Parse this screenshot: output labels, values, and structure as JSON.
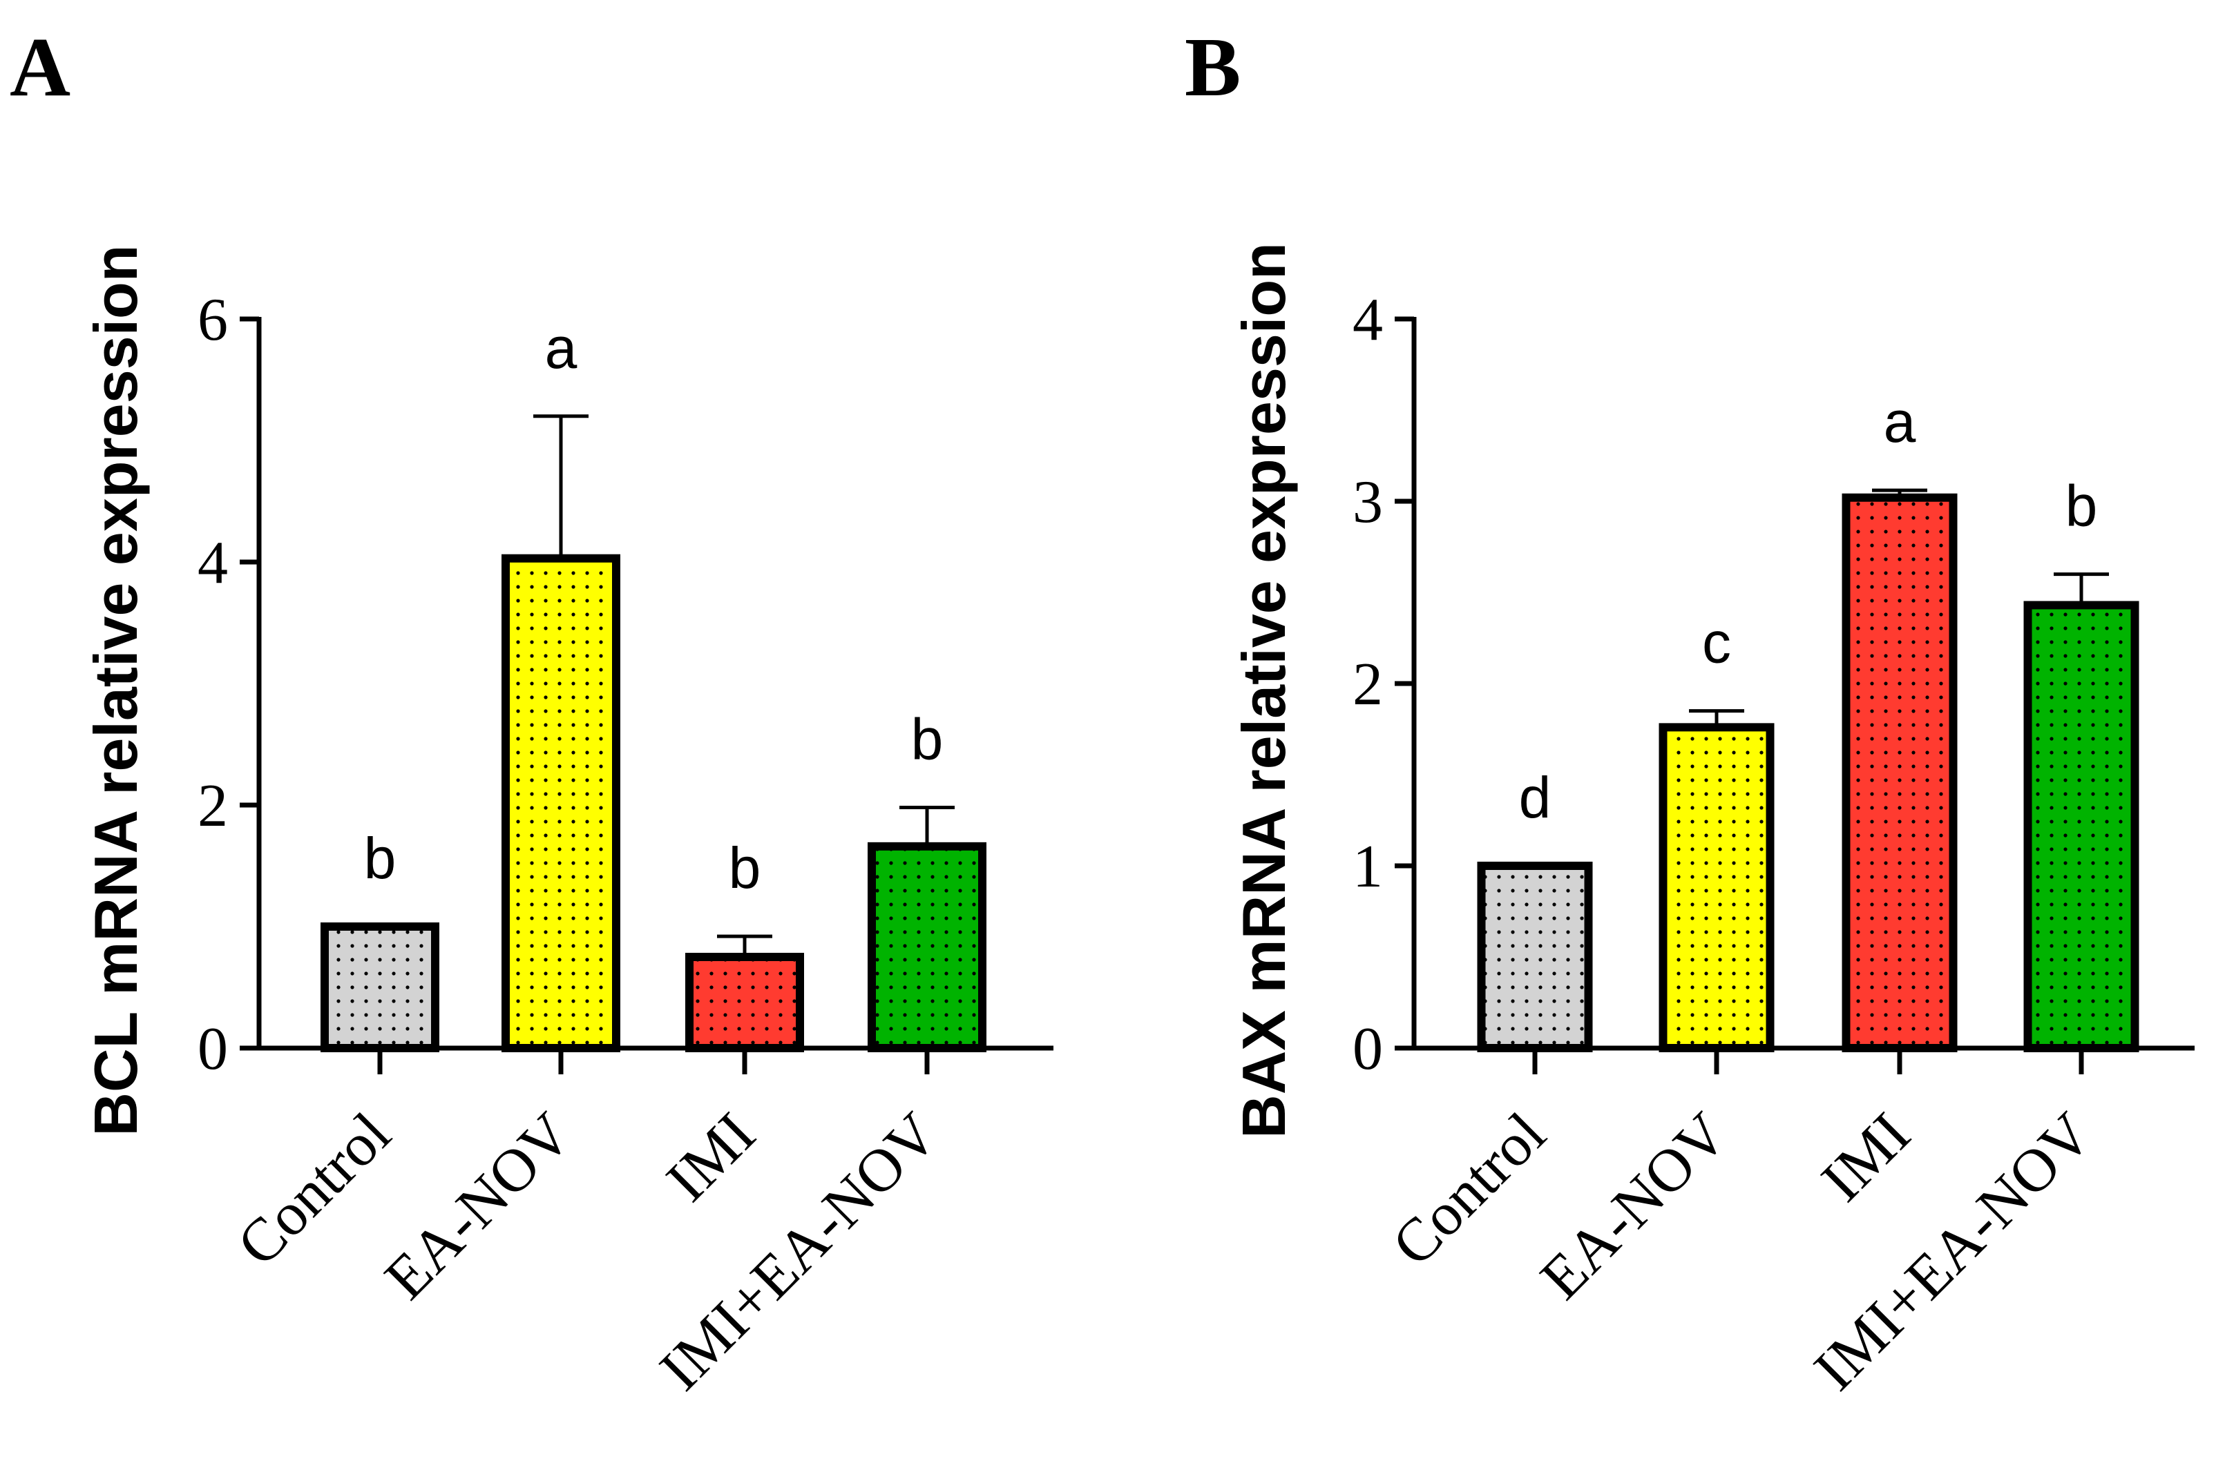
{
  "chart_data": [
    {
      "type": "bar",
      "panel": "A",
      "ylabel": "BCL mRNA relative expression",
      "categories": [
        "Control",
        "EA-NOV",
        "IMI",
        "IMI+EA-NOV"
      ],
      "values": [
        1.0,
        4.03,
        0.75,
        1.66
      ],
      "errors": [
        0.0,
        1.17,
        0.17,
        0.32
      ],
      "significance": [
        "b",
        "a",
        "b",
        "b"
      ],
      "colors": [
        "#d3d3d3",
        "#ffff00",
        "#ff3b30",
        "#00b300"
      ],
      "ylim": [
        0,
        6
      ],
      "yticks": [
        0,
        2,
        4,
        6
      ],
      "ytick_labels": [
        "0",
        "2",
        "4",
        "6"
      ]
    },
    {
      "type": "bar",
      "panel": "B",
      "ylabel": "BAX mRNA relative expression",
      "categories": [
        "Control",
        "EA-NOV",
        "IMI",
        "IMI+EA-NOV"
      ],
      "values": [
        1.0,
        1.76,
        3.02,
        2.43
      ],
      "errors": [
        0.0,
        0.09,
        0.04,
        0.17
      ],
      "significance": [
        "d",
        "c",
        "a",
        "b"
      ],
      "colors": [
        "#d3d3d3",
        "#ffff00",
        "#ff3b30",
        "#00b300"
      ],
      "ylim": [
        0,
        4
      ],
      "yticks": [
        0,
        1,
        2,
        3,
        4
      ],
      "ytick_labels": [
        "0",
        "1",
        "2",
        "3",
        "4"
      ]
    }
  ]
}
